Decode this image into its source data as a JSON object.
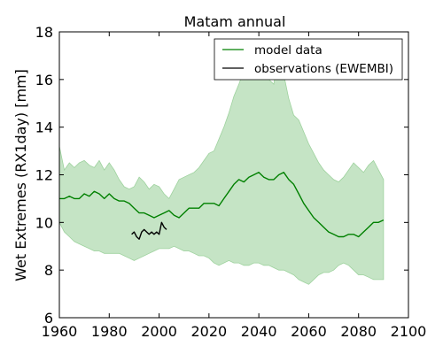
{
  "chart_data": {
    "type": "line",
    "title": "Matam annual",
    "xlabel": "",
    "ylabel": "Wet Extremes (RX1day) [mm]",
    "xlim": [
      1960,
      2100
    ],
    "ylim": [
      6,
      18
    ],
    "xticks": [
      1960,
      1980,
      2000,
      2020,
      2040,
      2060,
      2080,
      2100
    ],
    "yticks": [
      6,
      8,
      10,
      12,
      14,
      16,
      18
    ],
    "grid": false,
    "legend_position": "top-right",
    "colors": {
      "model": "#008000",
      "band": "#c5e4c5",
      "band_edge": "#9ed29e",
      "observations": "#000000"
    },
    "series": [
      {
        "name": "model data",
        "kind": "line",
        "x": [
          1960,
          1962,
          1964,
          1966,
          1968,
          1970,
          1972,
          1974,
          1976,
          1978,
          1980,
          1982,
          1984,
          1986,
          1988,
          1990,
          1992,
          1994,
          1996,
          1998,
          2000,
          2002,
          2004,
          2006,
          2008,
          2010,
          2012,
          2014,
          2016,
          2018,
          2020,
          2022,
          2024,
          2026,
          2028,
          2030,
          2032,
          2034,
          2036,
          2038,
          2040,
          2042,
          2044,
          2046,
          2048,
          2050,
          2052,
          2054,
          2056,
          2058,
          2060,
          2062,
          2064,
          2066,
          2068,
          2070,
          2072,
          2074,
          2076,
          2078,
          2080,
          2082,
          2084,
          2086,
          2088,
          2090
        ],
        "y": [
          11.0,
          11.0,
          11.1,
          11.0,
          11.0,
          11.2,
          11.1,
          11.3,
          11.2,
          11.0,
          11.2,
          11.0,
          10.9,
          10.9,
          10.8,
          10.6,
          10.4,
          10.4,
          10.3,
          10.2,
          10.3,
          10.4,
          10.5,
          10.3,
          10.2,
          10.4,
          10.6,
          10.6,
          10.6,
          10.8,
          10.8,
          10.8,
          10.7,
          11.0,
          11.3,
          11.6,
          11.8,
          11.7,
          11.9,
          12.0,
          12.1,
          11.9,
          11.8,
          11.8,
          12.0,
          12.1,
          11.8,
          11.6,
          11.2,
          10.8,
          10.5,
          10.2,
          10.0,
          9.8,
          9.6,
          9.5,
          9.4,
          9.4,
          9.5,
          9.5,
          9.4,
          9.6,
          9.8,
          10.0,
          10.0,
          10.1
        ]
      },
      {
        "name": "observations (EWEMBI)",
        "kind": "line",
        "x": [
          1989,
          1990,
          1991,
          1992,
          1993,
          1994,
          1995,
          1996,
          1997,
          1998,
          1999,
          2000,
          2001,
          2002,
          2003
        ],
        "y": [
          9.5,
          9.6,
          9.4,
          9.3,
          9.6,
          9.7,
          9.6,
          9.5,
          9.6,
          9.5,
          9.6,
          9.5,
          10.0,
          9.8,
          9.7
        ]
      }
    ],
    "band": {
      "name": "model range",
      "x": [
        1960,
        1962,
        1964,
        1966,
        1968,
        1970,
        1972,
        1974,
        1976,
        1978,
        1980,
        1982,
        1984,
        1986,
        1988,
        1990,
        1992,
        1994,
        1996,
        1998,
        2000,
        2002,
        2004,
        2006,
        2008,
        2010,
        2012,
        2014,
        2016,
        2018,
        2020,
        2022,
        2024,
        2026,
        2028,
        2030,
        2032,
        2034,
        2036,
        2038,
        2040,
        2042,
        2044,
        2046,
        2048,
        2050,
        2052,
        2054,
        2056,
        2058,
        2060,
        2062,
        2064,
        2066,
        2068,
        2070,
        2072,
        2074,
        2076,
        2078,
        2080,
        2082,
        2084,
        2086,
        2088,
        2090
      ],
      "upper": [
        13.2,
        12.2,
        12.5,
        12.3,
        12.5,
        12.6,
        12.4,
        12.3,
        12.6,
        12.2,
        12.5,
        12.2,
        11.8,
        11.5,
        11.4,
        11.5,
        11.9,
        11.7,
        11.4,
        11.6,
        11.5,
        11.2,
        11.0,
        11.4,
        11.8,
        11.9,
        12.0,
        12.1,
        12.3,
        12.6,
        12.9,
        13.0,
        13.5,
        14.0,
        14.6,
        15.3,
        15.8,
        16.4,
        16.8,
        17.3,
        17.6,
        17.2,
        16.0,
        15.8,
        17.2,
        16.2,
        15.2,
        14.5,
        14.3,
        13.8,
        13.3,
        12.9,
        12.5,
        12.2,
        12.0,
        11.8,
        11.7,
        11.9,
        12.2,
        12.5,
        12.3,
        12.1,
        12.4,
        12.6,
        12.2,
        11.8
      ],
      "lower": [
        10.0,
        9.6,
        9.4,
        9.2,
        9.1,
        9.0,
        8.9,
        8.8,
        8.8,
        8.7,
        8.7,
        8.7,
        8.7,
        8.6,
        8.5,
        8.4,
        8.5,
        8.6,
        8.7,
        8.8,
        8.9,
        8.9,
        8.9,
        9.0,
        8.9,
        8.8,
        8.8,
        8.7,
        8.6,
        8.6,
        8.5,
        8.3,
        8.2,
        8.3,
        8.4,
        8.3,
        8.3,
        8.2,
        8.2,
        8.3,
        8.3,
        8.2,
        8.2,
        8.1,
        8.0,
        8.0,
        7.9,
        7.8,
        7.6,
        7.5,
        7.4,
        7.6,
        7.8,
        7.9,
        7.9,
        8.0,
        8.2,
        8.3,
        8.2,
        8.0,
        7.8,
        7.8,
        7.7,
        7.6,
        7.6,
        7.6
      ]
    }
  }
}
